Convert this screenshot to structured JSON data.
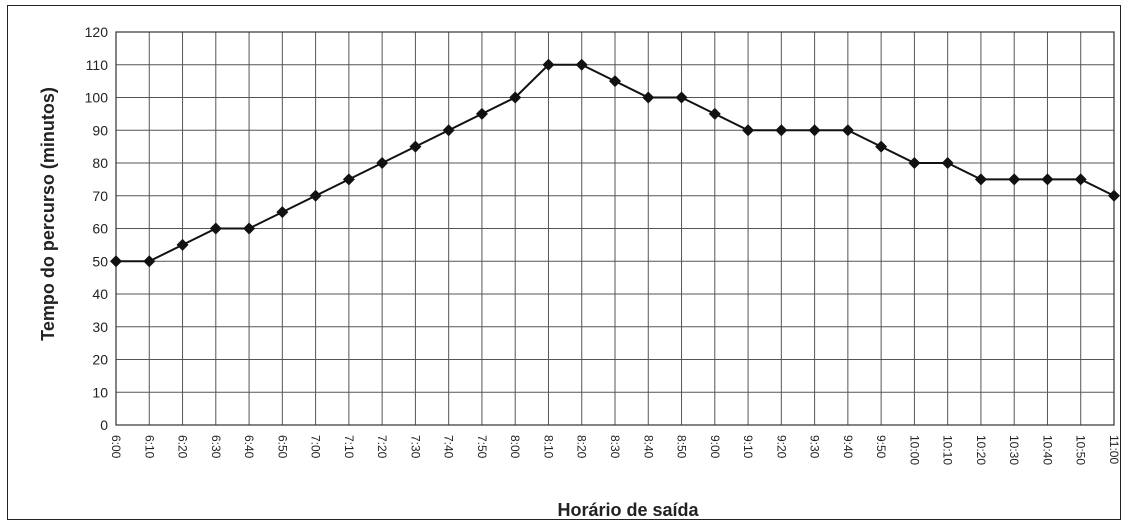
{
  "chart_data": {
    "type": "line",
    "title": "",
    "xlabel": "Horário de saída",
    "ylabel": "Tempo do percurso (minutos)",
    "ylim": [
      0,
      120
    ],
    "yticks": [
      "0",
      "10",
      "20",
      "30",
      "40",
      "50",
      "60",
      "70",
      "80",
      "90",
      "100",
      "110",
      "120"
    ],
    "grid": true,
    "categories": [
      "6:00",
      "6:10",
      "6:20",
      "6:30",
      "6:40",
      "6:50",
      "7:00",
      "7:10",
      "7:20",
      "7:30",
      "7:40",
      "7:50",
      "8:00",
      "8:10",
      "8:20",
      "8:30",
      "8:40",
      "8:50",
      "9:00",
      "9:10",
      "9:20",
      "9:30",
      "9:40",
      "9:50",
      "10:00",
      "10:10",
      "10:20",
      "10:30",
      "10:40",
      "10:50",
      "11:00"
    ],
    "series": [
      {
        "values": [
          50,
          50,
          55,
          60,
          60,
          65,
          70,
          75,
          80,
          85,
          90,
          95,
          100,
          110,
          110,
          105,
          100,
          100,
          95,
          90,
          90,
          90,
          90,
          85,
          80,
          80,
          75,
          75,
          75,
          75,
          70
        ]
      }
    ],
    "colors": {
      "line": "#111111",
      "marker": "#111111",
      "grid": "#555555"
    }
  }
}
